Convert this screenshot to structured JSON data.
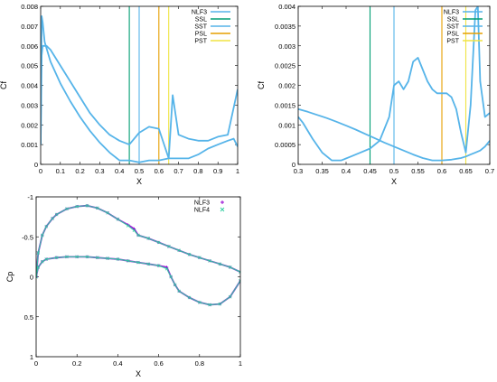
{
  "chart_data": [
    {
      "type": "line",
      "xlabel": "X",
      "ylabel": "Cf",
      "xlim": [
        0,
        1
      ],
      "ylim": [
        0,
        0.008
      ],
      "xticks": [
        0,
        0.1,
        0.2,
        0.3,
        0.4,
        0.5,
        0.6,
        0.7,
        0.8,
        0.9,
        1
      ],
      "xtick_labels": [
        "0",
        "0.1",
        "0.2",
        "0.3",
        "0.4",
        "0.5",
        "0.6",
        "0.7",
        "0.8",
        "0.9",
        "1"
      ],
      "yticks": [
        0,
        0.001,
        0.002,
        0.003,
        0.004,
        0.005,
        0.006,
        0.007,
        0.008
      ],
      "ytick_labels": [
        "0",
        "0.001",
        "0.002",
        "0.003",
        "0.004",
        "0.005",
        "0.006",
        "0.007",
        "0.008"
      ],
      "legend_position": "top-right",
      "legend": [
        {
          "name": "NLF3",
          "color": "#56b4e9"
        },
        {
          "name": "SSL",
          "color": "#009e73"
        },
        {
          "name": "SST",
          "color": "#56b4e9"
        },
        {
          "name": "PSL",
          "color": "#e69f00"
        },
        {
          "name": "PST",
          "color": "#f0e442"
        }
      ],
      "vlines": [
        {
          "x": 0.45,
          "color": "#009e73"
        },
        {
          "x": 0.5,
          "color": "#56b4e9"
        },
        {
          "x": 0.6,
          "color": "#e69f00"
        },
        {
          "x": 0.65,
          "color": "#f0e442"
        }
      ],
      "series": [
        {
          "name": "NLF3",
          "color": "#56b4e9",
          "x": [
            0,
            0.005,
            0.01,
            0.02,
            0.05,
            0.1,
            0.15,
            0.2,
            0.25,
            0.3,
            0.35,
            0.4,
            0.45,
            0.5,
            0.55,
            0.6,
            0.65,
            0.7,
            0.75,
            0.8,
            0.85,
            0.9,
            0.95,
            0.98,
            1
          ],
          "y": [
            0.001,
            0.0075,
            0.0072,
            0.0062,
            0.0052,
            0.0041,
            0.0032,
            0.0024,
            0.0017,
            0.0011,
            0.0006,
            0.0002,
            0.0002,
            0.0001,
            0.0002,
            0.0002,
            0.0003,
            0.0003,
            0.0003,
            0.0005,
            0.0008,
            0.001,
            0.0012,
            0.0013,
            0.0009
          ]
        },
        {
          "name": "NLF3",
          "color": "#56b4e9",
          "x": [
            0,
            0.005,
            0.01,
            0.03,
            0.05,
            0.1,
            0.15,
            0.2,
            0.25,
            0.3,
            0.35,
            0.4,
            0.45,
            0.5,
            0.55,
            0.6,
            0.65,
            0.67,
            0.7,
            0.75,
            0.8,
            0.85,
            0.9,
            0.95,
            1
          ],
          "y": [
            0.001,
            0.0055,
            0.006,
            0.006,
            0.0058,
            0.005,
            0.0042,
            0.0034,
            0.0026,
            0.002,
            0.0015,
            0.0012,
            0.001,
            0.0016,
            0.0019,
            0.0018,
            0.0003,
            0.0035,
            0.0015,
            0.0013,
            0.0012,
            0.0012,
            0.0014,
            0.0015,
            0.0038
          ]
        }
      ]
    },
    {
      "type": "line",
      "xlabel": "X",
      "ylabel": "Cf",
      "xlim": [
        0.3,
        0.7
      ],
      "ylim": [
        0,
        0.004
      ],
      "xticks": [
        0.3,
        0.35,
        0.4,
        0.45,
        0.5,
        0.55,
        0.6,
        0.65,
        0.7
      ],
      "xtick_labels": [
        "0.3",
        "0.35",
        "0.4",
        "0.45",
        "0.5",
        "0.55",
        "0.6",
        "0.65",
        "0.7"
      ],
      "yticks": [
        0,
        0.0005,
        0.001,
        0.0015,
        0.002,
        0.0025,
        0.003,
        0.0035,
        0.004
      ],
      "ytick_labels": [
        "0",
        "0.0005",
        "0.001",
        "0.0015",
        "0.002",
        "0.0025",
        "0.003",
        "0.0035",
        "0.004"
      ],
      "legend_position": "top-right",
      "legend": [
        {
          "name": "NLF3",
          "color": "#56b4e9"
        },
        {
          "name": "SSL",
          "color": "#009e73"
        },
        {
          "name": "SST",
          "color": "#56b4e9"
        },
        {
          "name": "PSL",
          "color": "#e69f00"
        },
        {
          "name": "PST",
          "color": "#f0e442"
        }
      ],
      "vlines": [
        {
          "x": 0.45,
          "color": "#009e73"
        },
        {
          "x": 0.5,
          "color": "#56b4e9"
        },
        {
          "x": 0.6,
          "color": "#e69f00"
        },
        {
          "x": 0.65,
          "color": "#f0e442"
        }
      ],
      "series": [
        {
          "name": "NLF3",
          "color": "#56b4e9",
          "x": [
            0.3,
            0.32,
            0.34,
            0.36,
            0.38,
            0.4,
            0.42,
            0.44,
            0.46,
            0.48,
            0.5,
            0.52,
            0.54,
            0.56,
            0.58,
            0.6,
            0.62,
            0.64,
            0.65,
            0.66,
            0.67,
            0.68,
            0.69,
            0.7
          ],
          "y": [
            0.0014,
            0.00133,
            0.00125,
            0.00117,
            0.00108,
            0.00098,
            0.00088,
            0.00077,
            0.00066,
            0.00055,
            0.00045,
            0.00035,
            0.00025,
            0.00016,
            0.0001,
            0.0001,
            0.00012,
            0.00016,
            0.0002,
            0.00025,
            0.0003,
            0.00035,
            0.00045,
            0.0006
          ]
        },
        {
          "name": "NLF3",
          "color": "#56b4e9",
          "x": [
            0.3,
            0.31,
            0.33,
            0.35,
            0.37,
            0.39,
            0.41,
            0.43,
            0.45,
            0.47,
            0.49,
            0.5,
            0.51,
            0.52,
            0.53,
            0.54,
            0.55,
            0.56,
            0.57,
            0.58,
            0.59,
            0.6,
            0.61,
            0.62,
            0.63,
            0.64,
            0.65,
            0.66,
            0.67,
            0.675,
            0.68,
            0.69,
            0.7
          ],
          "y": [
            0.0012,
            0.00105,
            0.00065,
            0.0003,
            0.0001,
            0.0001,
            0.0002,
            0.0003,
            0.0004,
            0.0006,
            0.0012,
            0.002,
            0.0021,
            0.0019,
            0.0021,
            0.0026,
            0.0027,
            0.0024,
            0.0021,
            0.0019,
            0.0018,
            0.0018,
            0.0018,
            0.0017,
            0.0014,
            0.0008,
            0.0003,
            0.0015,
            0.0039,
            0.004,
            0.0021,
            0.0012,
            0.0013
          ]
        }
      ]
    },
    {
      "type": "scatter",
      "xlabel": "X",
      "ylabel": "Cp",
      "xlim": [
        0,
        1
      ],
      "ylim": [
        -1,
        1
      ],
      "y_inverted": true,
      "xticks": [
        0,
        0.2,
        0.4,
        0.6,
        0.8,
        1
      ],
      "xtick_labels": [
        "0",
        "0.2",
        "0.4",
        "0.6",
        "0.8",
        "1"
      ],
      "yticks": [
        -1,
        -0.5,
        0,
        0.5,
        1
      ],
      "ytick_labels": [
        "-1",
        "-0.5",
        "0",
        "0.5",
        "1"
      ],
      "legend_position": "top-right",
      "legend": [
        {
          "name": "NLF3",
          "color": "#9400d3",
          "marker": "+"
        },
        {
          "name": "NLF4",
          "color": "#2ecc9f",
          "marker": "x"
        }
      ],
      "series": [
        {
          "name": "NLF3",
          "color": "#9400d3",
          "marker": "+",
          "upper_x": [
            0,
            0.01,
            0.03,
            0.05,
            0.08,
            0.1,
            0.15,
            0.2,
            0.25,
            0.3,
            0.35,
            0.4,
            0.45,
            0.48,
            0.5,
            0.55,
            0.6,
            0.65,
            0.7,
            0.75,
            0.8,
            0.85,
            0.9,
            0.95,
            1
          ],
          "upper_y": [
            0.0,
            -0.3,
            -0.52,
            -0.63,
            -0.73,
            -0.78,
            -0.85,
            -0.88,
            -0.89,
            -0.86,
            -0.8,
            -0.72,
            -0.65,
            -0.6,
            -0.52,
            -0.48,
            -0.43,
            -0.38,
            -0.33,
            -0.28,
            -0.24,
            -0.2,
            -0.16,
            -0.12,
            -0.06
          ],
          "lower_x": [
            0,
            0.01,
            0.03,
            0.05,
            0.1,
            0.15,
            0.2,
            0.25,
            0.3,
            0.35,
            0.4,
            0.45,
            0.5,
            0.55,
            0.6,
            0.64,
            0.66,
            0.68,
            0.7,
            0.75,
            0.8,
            0.85,
            0.9,
            0.95,
            1
          ],
          "lower_y": [
            0.0,
            -0.12,
            -0.19,
            -0.22,
            -0.24,
            -0.25,
            -0.25,
            -0.25,
            -0.24,
            -0.23,
            -0.22,
            -0.2,
            -0.18,
            -0.16,
            -0.14,
            -0.12,
            0.0,
            0.1,
            0.18,
            0.26,
            0.32,
            0.35,
            0.34,
            0.25,
            0.05
          ]
        },
        {
          "name": "NLF4",
          "color": "#2ecc9f",
          "marker": "x",
          "upper_x": [
            0,
            0.01,
            0.03,
            0.05,
            0.08,
            0.1,
            0.15,
            0.2,
            0.25,
            0.3,
            0.35,
            0.4,
            0.45,
            0.48,
            0.5,
            0.55,
            0.6,
            0.65,
            0.7,
            0.75,
            0.8,
            0.85,
            0.9,
            0.95,
            1
          ],
          "upper_y": [
            0.0,
            -0.3,
            -0.52,
            -0.63,
            -0.73,
            -0.78,
            -0.85,
            -0.88,
            -0.89,
            -0.86,
            -0.8,
            -0.72,
            -0.64,
            -0.58,
            -0.52,
            -0.48,
            -0.43,
            -0.38,
            -0.33,
            -0.28,
            -0.24,
            -0.2,
            -0.16,
            -0.12,
            -0.06
          ],
          "lower_x": [
            0,
            0.01,
            0.03,
            0.05,
            0.1,
            0.15,
            0.2,
            0.25,
            0.3,
            0.35,
            0.4,
            0.45,
            0.5,
            0.55,
            0.6,
            0.64,
            0.66,
            0.68,
            0.7,
            0.75,
            0.8,
            0.85,
            0.9,
            0.95,
            1
          ],
          "lower_y": [
            0.0,
            -0.12,
            -0.19,
            -0.22,
            -0.24,
            -0.25,
            -0.25,
            -0.25,
            -0.24,
            -0.23,
            -0.22,
            -0.2,
            -0.18,
            -0.16,
            -0.14,
            -0.1,
            0.0,
            0.1,
            0.18,
            0.26,
            0.32,
            0.35,
            0.34,
            0.25,
            0.05
          ]
        }
      ]
    }
  ]
}
